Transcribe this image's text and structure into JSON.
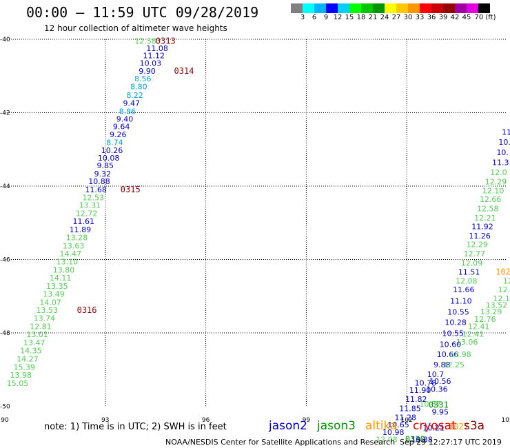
{
  "header": {
    "title": "00:00 – 11:59 UTC 09/28/2019",
    "subtitle": "12 hour collection of altimeter wave heights"
  },
  "legend": {
    "colors": [
      "#808080",
      "#00ffff",
      "#00b3ff",
      "#0000ff",
      "#00d0ff",
      "#00ff00",
      "#00c800",
      "#009600",
      "#ffff00",
      "#ffc800",
      "#ff9600",
      "#ff0000",
      "#c80000",
      "#960000",
      "#a000a0",
      "#e000e0",
      "#000000"
    ],
    "labels": [
      "3",
      "6",
      "9",
      "12",
      "15",
      "18",
      "21",
      "24",
      "27",
      "30",
      "33",
      "36",
      "39",
      "42",
      "45",
      "70 (ft)"
    ]
  },
  "colors": {
    "jason2": "#0000c8",
    "jason3": "#009600",
    "altika": "#ff9600",
    "cryosat": "#e00000",
    "s3a": "#8b0000",
    "swh_light_blue": "#00a0e0",
    "swh_green": "#50d050"
  },
  "axes": {
    "lon_ticks": [
      "90",
      "93",
      "96",
      "99",
      "102",
      "105"
    ],
    "lat_ticks": [
      "-40",
      "-42",
      "-44",
      "-46",
      "-48",
      "-50"
    ]
  },
  "tracks": {
    "west": [
      {
        "lat": -40.05,
        "lon": 94.8,
        "text": "0313",
        "kind": "time"
      },
      {
        "lat": -40.05,
        "lon": 94.2,
        "text": "12.58",
        "kind": "green"
      },
      {
        "lat": -40.24,
        "lon": 94.55,
        "text": "11.08",
        "kind": "blue"
      },
      {
        "lat": -40.44,
        "lon": 94.45,
        "text": "11.12",
        "kind": "blue"
      },
      {
        "lat": -40.65,
        "lon": 94.35,
        "text": "10.03",
        "kind": "blue"
      },
      {
        "lat": -40.86,
        "lon": 94.25,
        "text": "9.90",
        "kind": "blue"
      },
      {
        "lat": -40.86,
        "lon": 95.35,
        "text": "0314",
        "kind": "time"
      },
      {
        "lat": -41.07,
        "lon": 94.12,
        "text": "8.56",
        "kind": "lightblue"
      },
      {
        "lat": -41.29,
        "lon": 94.0,
        "text": "8.80",
        "kind": "lightblue"
      },
      {
        "lat": -41.52,
        "lon": 93.88,
        "text": "8.22",
        "kind": "lightblue"
      },
      {
        "lat": -41.74,
        "lon": 93.78,
        "text": "9.47",
        "kind": "blue"
      },
      {
        "lat": -41.96,
        "lon": 93.66,
        "text": "8.86",
        "kind": "lightblue"
      },
      {
        "lat": -42.17,
        "lon": 93.58,
        "text": "9.40",
        "kind": "blue"
      },
      {
        "lat": -42.38,
        "lon": 93.48,
        "text": "9.64",
        "kind": "blue"
      },
      {
        "lat": -42.59,
        "lon": 93.38,
        "text": "9.26",
        "kind": "blue"
      },
      {
        "lat": -42.81,
        "lon": 93.28,
        "text": "8.74",
        "kind": "lightblue"
      },
      {
        "lat": -43.02,
        "lon": 93.2,
        "text": "10.26",
        "kind": "blue"
      },
      {
        "lat": -43.23,
        "lon": 93.1,
        "text": "10.08",
        "kind": "blue"
      },
      {
        "lat": -43.44,
        "lon": 93.0,
        "text": "9.85",
        "kind": "blue"
      },
      {
        "lat": -43.66,
        "lon": 92.92,
        "text": "9.32",
        "kind": "blue"
      },
      {
        "lat": -43.87,
        "lon": 92.82,
        "text": "10.88",
        "kind": "blue"
      },
      {
        "lat": -44.09,
        "lon": 92.72,
        "text": "11.68",
        "kind": "blue"
      },
      {
        "lat": -44.09,
        "lon": 93.75,
        "text": "0315",
        "kind": "time"
      },
      {
        "lat": -44.31,
        "lon": 92.64,
        "text": "12.53",
        "kind": "green"
      },
      {
        "lat": -44.52,
        "lon": 92.54,
        "text": "13.31",
        "kind": "green"
      },
      {
        "lat": -44.74,
        "lon": 92.44,
        "text": "12.72",
        "kind": "green"
      },
      {
        "lat": -44.96,
        "lon": 92.35,
        "text": "11.61",
        "kind": "blue"
      },
      {
        "lat": -45.18,
        "lon": 92.25,
        "text": "11.89",
        "kind": "blue"
      },
      {
        "lat": -45.4,
        "lon": 92.15,
        "text": "13.28",
        "kind": "green"
      },
      {
        "lat": -45.62,
        "lon": 92.05,
        "text": "13.63",
        "kind": "green"
      },
      {
        "lat": -45.84,
        "lon": 91.96,
        "text": "14.47",
        "kind": "green"
      },
      {
        "lat": -46.06,
        "lon": 91.86,
        "text": "13.10",
        "kind": "green"
      },
      {
        "lat": -46.28,
        "lon": 91.76,
        "text": "13.80",
        "kind": "green"
      },
      {
        "lat": -46.5,
        "lon": 91.66,
        "text": "14.11",
        "kind": "green"
      },
      {
        "lat": -46.72,
        "lon": 91.56,
        "text": "13.35",
        "kind": "green"
      },
      {
        "lat": -46.94,
        "lon": 91.46,
        "text": "13.49",
        "kind": "green"
      },
      {
        "lat": -47.16,
        "lon": 91.36,
        "text": "14.07",
        "kind": "green"
      },
      {
        "lat": -47.38,
        "lon": 91.26,
        "text": "13.53",
        "kind": "green"
      },
      {
        "lat": -47.38,
        "lon": 92.45,
        "text": "0316",
        "kind": "time"
      },
      {
        "lat": -47.6,
        "lon": 91.18,
        "text": "13.74",
        "kind": "green"
      },
      {
        "lat": -47.82,
        "lon": 91.07,
        "text": "12.81",
        "kind": "green"
      },
      {
        "lat": -48.04,
        "lon": 90.97,
        "text": "13.01",
        "kind": "green"
      },
      {
        "lat": -48.26,
        "lon": 90.88,
        "text": "13.47",
        "kind": "green"
      },
      {
        "lat": -48.48,
        "lon": 90.78,
        "text": "14.35",
        "kind": "green"
      },
      {
        "lat": -48.7,
        "lon": 90.68,
        "text": "14.27",
        "kind": "green"
      },
      {
        "lat": -48.93,
        "lon": 90.58,
        "text": "15.39",
        "kind": "green"
      },
      {
        "lat": -49.15,
        "lon": 90.48,
        "text": "13.98",
        "kind": "green"
      },
      {
        "lat": -49.37,
        "lon": 90.38,
        "text": "15.05",
        "kind": "green"
      }
    ],
    "east": [
      {
        "lat": -42.53,
        "lon": 104.98,
        "text": "11",
        "kind": "blue"
      },
      {
        "lat": -42.8,
        "lon": 104.92,
        "text": "10.",
        "kind": "blue"
      },
      {
        "lat": -43.08,
        "lon": 104.86,
        "text": "10.",
        "kind": "blue"
      },
      {
        "lat": -43.35,
        "lon": 104.8,
        "text": "11.3",
        "kind": "blue"
      },
      {
        "lat": -43.62,
        "lon": 104.74,
        "text": "12.0",
        "kind": "green"
      },
      {
        "lat": -43.88,
        "lon": 104.66,
        "text": "12.29",
        "kind": "green"
      },
      {
        "lat": -44.12,
        "lon": 104.58,
        "text": "12.10",
        "kind": "green"
      },
      {
        "lat": -44.36,
        "lon": 104.5,
        "text": "12.66",
        "kind": "green"
      },
      {
        "lat": -44.61,
        "lon": 104.42,
        "text": "12.58",
        "kind": "green"
      },
      {
        "lat": -44.86,
        "lon": 104.34,
        "text": "12.21",
        "kind": "green"
      },
      {
        "lat": -45.1,
        "lon": 104.26,
        "text": "11.92",
        "kind": "blue"
      },
      {
        "lat": -45.35,
        "lon": 104.18,
        "text": "11.26",
        "kind": "blue"
      },
      {
        "lat": -45.59,
        "lon": 104.1,
        "text": "12.29",
        "kind": "green"
      },
      {
        "lat": -45.84,
        "lon": 104.02,
        "text": "12.77",
        "kind": "green"
      },
      {
        "lat": -46.09,
        "lon": 103.94,
        "text": "12.09",
        "kind": "green"
      },
      {
        "lat": -46.34,
        "lon": 103.86,
        "text": "11.51",
        "kind": "blue"
      },
      {
        "lat": -46.34,
        "lon": 104.95,
        "text": "1026",
        "kind": "altika"
      },
      {
        "lat": -46.34,
        "lon": 105.4,
        "text": "12.11",
        "kind": "green"
      },
      {
        "lat": -46.58,
        "lon": 103.78,
        "text": "12.08",
        "kind": "green"
      },
      {
        "lat": -46.58,
        "lon": 105.2,
        "text": "12.11",
        "kind": "green"
      },
      {
        "lat": -46.82,
        "lon": 103.7,
        "text": "11.66",
        "kind": "blue"
      },
      {
        "lat": -46.82,
        "lon": 105.05,
        "text": "12.06",
        "kind": "green"
      },
      {
        "lat": -47.06,
        "lon": 104.9,
        "text": "12.19",
        "kind": "green"
      },
      {
        "lat": -47.13,
        "lon": 103.62,
        "text": "11.10",
        "kind": "blue"
      },
      {
        "lat": -47.24,
        "lon": 104.68,
        "text": "13.52",
        "kind": "green"
      },
      {
        "lat": -47.42,
        "lon": 104.52,
        "text": "13.29",
        "kind": "green"
      },
      {
        "lat": -47.43,
        "lon": 103.54,
        "text": "10.55",
        "kind": "blue"
      },
      {
        "lat": -47.62,
        "lon": 104.34,
        "text": "12.76",
        "kind": "green"
      },
      {
        "lat": -47.71,
        "lon": 103.46,
        "text": "10.28",
        "kind": "blue"
      },
      {
        "lat": -47.82,
        "lon": 104.15,
        "text": "12.41",
        "kind": "green"
      },
      {
        "lat": -48.01,
        "lon": 103.38,
        "text": "10.55",
        "kind": "blue"
      },
      {
        "lat": -48.03,
        "lon": 103.98,
        "text": "12.41",
        "kind": "green"
      },
      {
        "lat": -48.24,
        "lon": 103.8,
        "text": "13.06",
        "kind": "green"
      },
      {
        "lat": -48.31,
        "lon": 103.3,
        "text": "10.60",
        "kind": "blue"
      },
      {
        "lat": -48.58,
        "lon": 103.22,
        "text": "10.66",
        "kind": "blue"
      },
      {
        "lat": -48.58,
        "lon": 103.6,
        "text": "13.98",
        "kind": "green"
      },
      {
        "lat": -48.86,
        "lon": 103.05,
        "text": "9.88",
        "kind": "blue"
      },
      {
        "lat": -48.86,
        "lon": 103.4,
        "text": "12.25",
        "kind": "green"
      },
      {
        "lat": -49.13,
        "lon": 102.86,
        "text": "10.7",
        "kind": "blue"
      },
      {
        "lat": -49.31,
        "lon": 103.0,
        "text": "10.56",
        "kind": "blue"
      },
      {
        "lat": -49.36,
        "lon": 102.56,
        "text": "10.78",
        "kind": "blue"
      },
      {
        "lat": -49.53,
        "lon": 102.9,
        "text": "10.36",
        "kind": "blue"
      },
      {
        "lat": -49.56,
        "lon": 102.4,
        "text": "11.90",
        "kind": "blue"
      },
      {
        "lat": -49.8,
        "lon": 102.28,
        "text": "11.82",
        "kind": "blue"
      },
      {
        "lat": -49.93,
        "lon": 102.7,
        "text": "10.57",
        "kind": "green"
      },
      {
        "lat": -49.96,
        "lon": 102.95,
        "text": "0331",
        "kind": "jason3"
      },
      {
        "lat": -50.06,
        "lon": 102.1,
        "text": "11.85",
        "kind": "blue"
      },
      {
        "lat": -50.15,
        "lon": 103.0,
        "text": "9.95",
        "kind": "blue"
      },
      {
        "lat": -50.3,
        "lon": 101.96,
        "text": "11.28",
        "kind": "blue"
      },
      {
        "lat": -50.5,
        "lon": 101.75,
        "text": "10.65",
        "kind": "blue"
      },
      {
        "lat": -50.7,
        "lon": 101.6,
        "text": "10.98",
        "kind": "blue"
      },
      {
        "lat": -50.58,
        "lon": 102.8,
        "text": "10.21",
        "kind": "blue"
      },
      {
        "lat": -50.55,
        "lon": 103.55,
        "text": "1027",
        "kind": "altika"
      },
      {
        "lat": -50.9,
        "lon": 101.4,
        "text": "12.08",
        "kind": "green"
      },
      {
        "lat": -50.9,
        "lon": 102.25,
        "text": "0330",
        "kind": "jason3"
      },
      {
        "lat": -50.9,
        "lon": 102.45,
        "text": "10.88",
        "kind": "blue"
      }
    ]
  },
  "footer": {
    "note": "note:  1) Time is in UTC; 2) SWH is in feet",
    "satellites": [
      "jason2",
      "jason3",
      "altika",
      "cryosat",
      "s3a"
    ],
    "credit": "NOAA/NESDIS Center for Satellite Applications and Research",
    "stamp": "Sep 29 12:27:17 UTC 2019"
  }
}
